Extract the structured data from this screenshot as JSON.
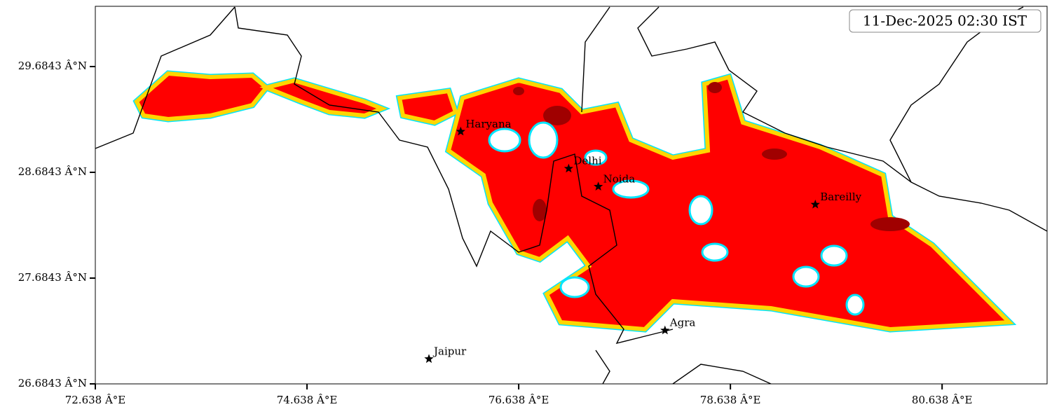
{
  "chart_data": {
    "type": "map",
    "annotation": "11-Dec-2025 02:30 IST",
    "xlim": [
      72.638,
      81.63
    ],
    "ylim": [
      26.6843,
      30.254
    ],
    "xticks": [
      {
        "value": 72.638,
        "label": "72.638 Â°E"
      },
      {
        "value": 74.638,
        "label": "74.638 Â°E"
      },
      {
        "value": 76.638,
        "label": "76.638 Â°E"
      },
      {
        "value": 78.638,
        "label": "78.638 Â°E"
      },
      {
        "value": 80.638,
        "label": "80.638 Â°E"
      }
    ],
    "yticks": [
      {
        "value": 26.6843,
        "label": "26.6843 Â°N"
      },
      {
        "value": 27.6843,
        "label": "27.6843 Â°N"
      },
      {
        "value": 28.6843,
        "label": "28.6843 Â°N"
      },
      {
        "value": 29.6843,
        "label": "29.6843 Â°N"
      }
    ],
    "cities": {
      "names": [
        "Haryana",
        "Delhi",
        "Noida",
        "Bareilly",
        "Agra",
        "Jaipur"
      ],
      "x": [
        76.09,
        77.11,
        77.39,
        79.44,
        78.02,
        75.79
      ],
      "y": [
        29.07,
        28.72,
        28.55,
        28.38,
        27.19,
        26.92
      ]
    }
  }
}
